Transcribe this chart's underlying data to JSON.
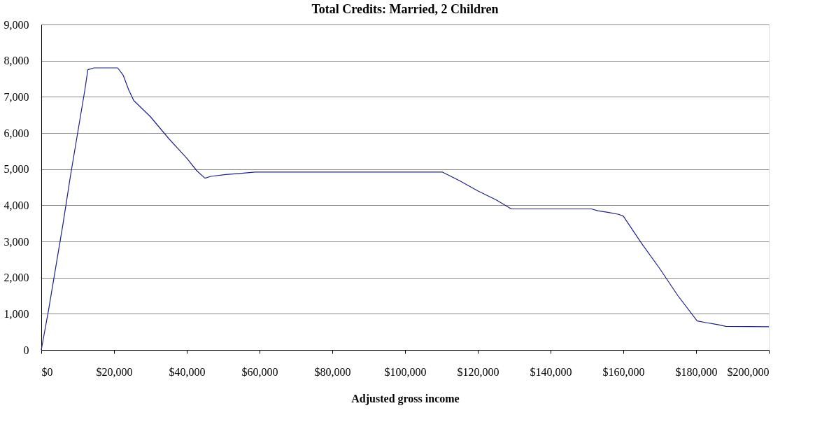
{
  "chart_data": {
    "type": "line",
    "title": "Total Credits: Married, 2 Children",
    "xlabel": "Adjusted gross income",
    "x": [
      0,
      2000,
      4000,
      6000,
      8000,
      10000,
      12000,
      12800,
      14500,
      21000,
      22500,
      24000,
      25400,
      30000,
      35000,
      40000,
      42800,
      45000,
      46600,
      50700,
      54500,
      58800,
      110200,
      115000,
      120000,
      125000,
      129200,
      151200,
      153000,
      156000,
      158700,
      160000,
      165000,
      170000,
      175000,
      180300,
      183000,
      186000,
      188200,
      200000
    ],
    "values": [
      0,
      1100,
      2300,
      3500,
      4800,
      6000,
      7200,
      7750,
      7800,
      7800,
      7600,
      7200,
      6900,
      6450,
      5850,
      5300,
      4950,
      4750,
      4800,
      4850,
      4880,
      4920,
      4920,
      4680,
      4400,
      4150,
      3900,
      3900,
      3850,
      3800,
      3750,
      3700,
      2950,
      2250,
      1500,
      800,
      750,
      700,
      650,
      640
    ],
    "color": "#1f1f8f",
    "line_style": "solid",
    "marker": "none",
    "xlim": [
      0,
      200000
    ],
    "ylim": [
      0,
      9000
    ],
    "xticks": [
      {
        "value": 0,
        "label": "$0"
      },
      {
        "value": 20000,
        "label": "$20,000"
      },
      {
        "value": 40000,
        "label": "$40,000"
      },
      {
        "value": 60000,
        "label": "$60,000"
      },
      {
        "value": 80000,
        "label": "$80,000"
      },
      {
        "value": 100000,
        "label": "$100,000"
      },
      {
        "value": 120000,
        "label": "$120,000"
      },
      {
        "value": 140000,
        "label": "$140,000"
      },
      {
        "value": 160000,
        "label": "$160,000"
      },
      {
        "value": 180000,
        "label": "$180,000"
      },
      {
        "value": 200000,
        "label": "$200,000"
      }
    ],
    "yticks": [
      0,
      {
        "value": 1000,
        "label": "1,000"
      },
      {
        "value": 2000,
        "label": "2,000"
      },
      {
        "value": 3000,
        "label": "3,000"
      },
      {
        "value": 4000,
        "label": "4,000"
      },
      {
        "value": 5000,
        "label": "5,000"
      },
      {
        "value": 6000,
        "label": "6,000"
      },
      {
        "value": 7000,
        "label": "7,000"
      },
      {
        "value": 8000,
        "label": "8,000"
      },
      {
        "value": 9000,
        "label": "9,000"
      }
    ],
    "grid": "y"
  }
}
